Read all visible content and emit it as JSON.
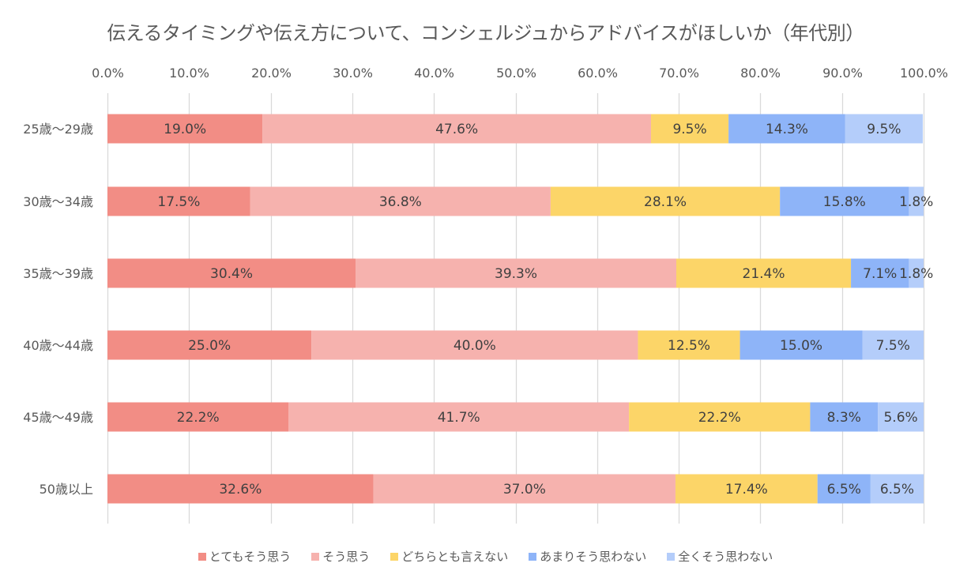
{
  "chart_data": {
    "type": "bar",
    "orientation": "horizontal",
    "stacked": "percent",
    "title": "伝えるタイミングや伝え方について、コンシェルジュからアドバイスがほしいか（年代別）",
    "xlabel": "",
    "ylabel": "",
    "xlim": [
      0,
      100
    ],
    "x_ticks": [
      "0.0%",
      "10.0%",
      "20.0%",
      "30.0%",
      "40.0%",
      "50.0%",
      "60.0%",
      "70.0%",
      "80.0%",
      "90.0%",
      "100.0%"
    ],
    "grid": true,
    "legend_position": "bottom",
    "categories": [
      "25歳～29歳",
      "30歳～34歳",
      "35歳～39歳",
      "40歳～44歳",
      "45歳～49歳",
      "50歳以上"
    ],
    "series": [
      {
        "name": "とてもそう思う",
        "color": "#F28D85",
        "values": [
          19.0,
          17.5,
          30.4,
          25.0,
          22.2,
          32.6
        ]
      },
      {
        "name": "そう思う",
        "color": "#F6B2AE",
        "values": [
          47.6,
          36.8,
          39.3,
          40.0,
          41.7,
          37.0
        ]
      },
      {
        "name": "どちらとも言えない",
        "color": "#FCD568",
        "values": [
          9.5,
          28.1,
          21.4,
          12.5,
          22.2,
          17.4
        ]
      },
      {
        "name": "あまりそう思わない",
        "color": "#8EB4F8",
        "values": [
          14.3,
          15.8,
          7.1,
          15.0,
          8.3,
          6.5
        ]
      },
      {
        "name": "全くそう思わない",
        "color": "#B4CDFA",
        "values": [
          9.5,
          1.8,
          1.8,
          7.5,
          5.6,
          6.5
        ]
      }
    ]
  }
}
